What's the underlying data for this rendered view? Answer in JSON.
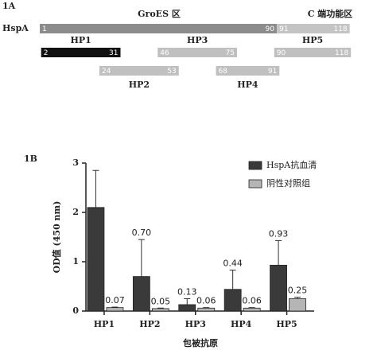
{
  "panel_a": {
    "label": "1A",
    "regions": [
      {
        "label": "GroES 区"
      },
      {
        "label": "C 端功能区"
      }
    ],
    "protein": {
      "name": "HspA",
      "segments": [
        {
          "start": 1,
          "end": 90
        },
        {
          "start": 91,
          "end": 118
        }
      ]
    },
    "fragments": [
      {
        "name": "HP1",
        "start": 2,
        "end": 31
      },
      {
        "name": "HP2",
        "start": 24,
        "end": 53
      },
      {
        "name": "HP3",
        "start": 46,
        "end": 75
      },
      {
        "name": "HP4",
        "start": 68,
        "end": 91
      },
      {
        "name": "HP5",
        "start": 90,
        "end": 118
      }
    ]
  },
  "chart_data": {
    "type": "bar",
    "panel_label": "1B",
    "ylabel": "OD值 (450 nm)",
    "xlabel": "包被抗原",
    "categories": [
      "HP1",
      "HP2",
      "HP3",
      "HP4",
      "HP5"
    ],
    "ylim": [
      0,
      3
    ],
    "yticks": [
      0,
      1,
      2,
      3
    ],
    "legend": "upper right",
    "series": [
      {
        "name": "HspA抗血清",
        "color": "#3a3a3a",
        "values": [
          2.1,
          0.7,
          0.13,
          0.44,
          0.93
        ],
        "errors": [
          0.75,
          0.75,
          0.12,
          0.39,
          0.5
        ],
        "value_labels": [
          null,
          "0.70",
          "0.13",
          "0.44",
          "0.93"
        ]
      },
      {
        "name": "阴性对照组",
        "color": "#b5b5b5",
        "values": [
          0.07,
          0.05,
          0.06,
          0.06,
          0.25
        ],
        "errors": [
          0.01,
          0.01,
          0.01,
          0.01,
          0.03
        ],
        "value_labels": [
          "0.07",
          "0.05",
          "0.06",
          "0.06",
          "0.25"
        ]
      }
    ]
  }
}
